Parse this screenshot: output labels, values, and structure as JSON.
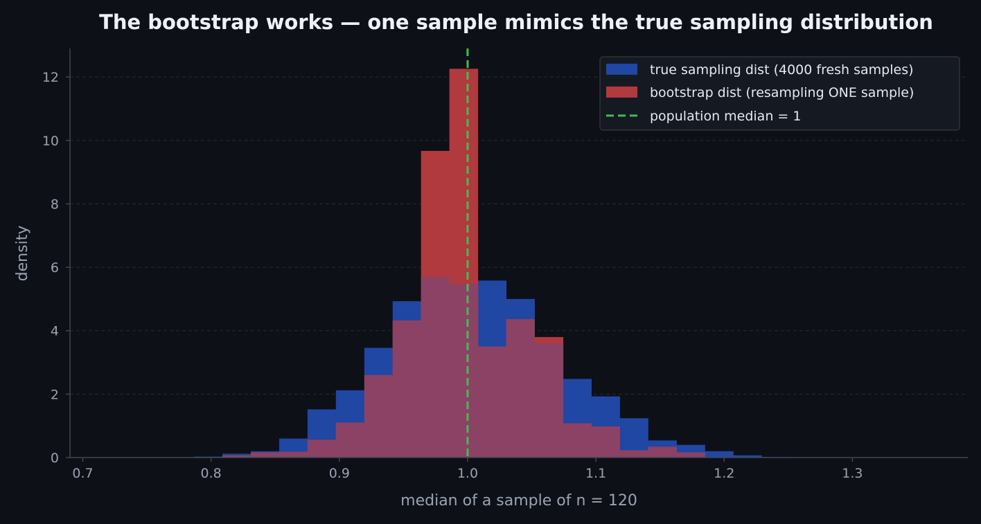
{
  "chart_data": {
    "type": "bar",
    "title": "The bootstrap works — one sample mimics the true sampling distribution",
    "xlabel": "median of a sample of n = 120",
    "ylabel": "density",
    "xlim": [
      0.69,
      1.39
    ],
    "ylim": [
      0,
      12.9
    ],
    "xticks": [
      0.7,
      0.8,
      0.9,
      1.0,
      1.1,
      1.2,
      1.3
    ],
    "xtick_labels": [
      "0.7",
      "0.8",
      "0.9",
      "1.0",
      "1.1",
      "1.2",
      "1.3"
    ],
    "yticks": [
      0,
      2,
      4,
      6,
      8,
      10,
      12
    ],
    "ytick_labels": [
      "0",
      "2",
      "4",
      "6",
      "8",
      "10",
      "12"
    ],
    "grid": "horizontal dashed",
    "legend_position": "top-right",
    "bin_edges": [
      0.7867,
      0.8088,
      0.831,
      0.8531,
      0.8752,
      0.8973,
      0.9195,
      0.9416,
      0.9637,
      0.9858,
      1.008,
      1.0301,
      1.0522,
      1.0744,
      1.0965,
      1.1186,
      1.1407,
      1.1629,
      1.185,
      1.2071,
      1.2292,
      1.2514,
      1.2735
    ],
    "series": [
      {
        "name": "true sampling dist (4000 fresh samples)",
        "color": "#2047a3",
        "values": [
          0.03,
          0.12,
          0.2,
          0.6,
          1.52,
          2.12,
          3.46,
          4.93,
          5.7,
          5.47,
          5.58,
          5.0,
          3.6,
          2.48,
          1.93,
          1.24,
          0.54,
          0.4,
          0.2,
          0.07,
          0.02,
          0.01
        ]
      },
      {
        "name": "bootstrap dist (resampling ONE sample)",
        "color": "#b03a3d",
        "values": [
          0.0,
          0.06,
          0.16,
          0.18,
          0.56,
          1.1,
          2.6,
          4.32,
          9.67,
          12.26,
          3.5,
          4.36,
          3.8,
          1.08,
          0.98,
          0.23,
          0.34,
          0.16,
          0.0,
          0.0,
          0.0,
          0.0
        ]
      }
    ],
    "reference_line": {
      "label": "population median = 1",
      "x": 1.0,
      "color": "#3fbf4f"
    },
    "colors": {
      "background": "#0d1017",
      "overlap": "#8c4264",
      "grid": "#252b36",
      "axis": "#3f4654"
    }
  }
}
